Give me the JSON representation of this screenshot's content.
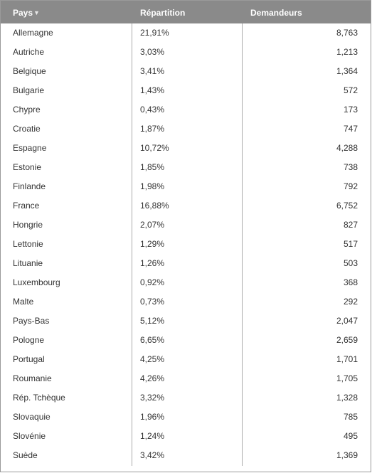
{
  "table": {
    "headers": {
      "country": "Pays",
      "share": "Répartition",
      "applicants": "Demandeurs",
      "sort_indicator": "▼"
    },
    "sort": {
      "column": "Pays",
      "icon": "triangle-down-icon"
    },
    "colors": {
      "header_bg": "#8a8a8a",
      "header_text": "#ffffff",
      "border": "#9a9a9a"
    },
    "rows": [
      {
        "country": "Allemagne",
        "share": "21,91%",
        "applicants": "8,763"
      },
      {
        "country": "Autriche",
        "share": "3,03%",
        "applicants": "1,213"
      },
      {
        "country": "Belgique",
        "share": "3,41%",
        "applicants": "1,364"
      },
      {
        "country": "Bulgarie",
        "share": "1,43%",
        "applicants": "572"
      },
      {
        "country": "Chypre",
        "share": "0,43%",
        "applicants": "173"
      },
      {
        "country": "Croatie",
        "share": "1,87%",
        "applicants": "747"
      },
      {
        "country": "Espagne",
        "share": "10,72%",
        "applicants": "4,288"
      },
      {
        "country": "Estonie",
        "share": "1,85%",
        "applicants": "738"
      },
      {
        "country": "Finlande",
        "share": "1,98%",
        "applicants": "792"
      },
      {
        "country": "France",
        "share": "16,88%",
        "applicants": "6,752"
      },
      {
        "country": "Hongrie",
        "share": "2,07%",
        "applicants": "827"
      },
      {
        "country": "Lettonie",
        "share": "1,29%",
        "applicants": "517"
      },
      {
        "country": "Lituanie",
        "share": "1,26%",
        "applicants": "503"
      },
      {
        "country": "Luxembourg",
        "share": "0,92%",
        "applicants": "368"
      },
      {
        "country": "Malte",
        "share": "0,73%",
        "applicants": "292"
      },
      {
        "country": "Pays-Bas",
        "share": "5,12%",
        "applicants": "2,047"
      },
      {
        "country": "Pologne",
        "share": "6,65%",
        "applicants": "2,659"
      },
      {
        "country": "Portugal",
        "share": "4,25%",
        "applicants": "1,701"
      },
      {
        "country": "Roumanie",
        "share": "4,26%",
        "applicants": "1,705"
      },
      {
        "country": "Rép. Tchèque",
        "share": "3,32%",
        "applicants": "1,328"
      },
      {
        "country": "Slovaquie",
        "share": "1,96%",
        "applicants": "785"
      },
      {
        "country": "Slovénie",
        "share": "1,24%",
        "applicants": "495"
      },
      {
        "country": "Suède",
        "share": "3,42%",
        "applicants": "1,369"
      }
    ]
  }
}
